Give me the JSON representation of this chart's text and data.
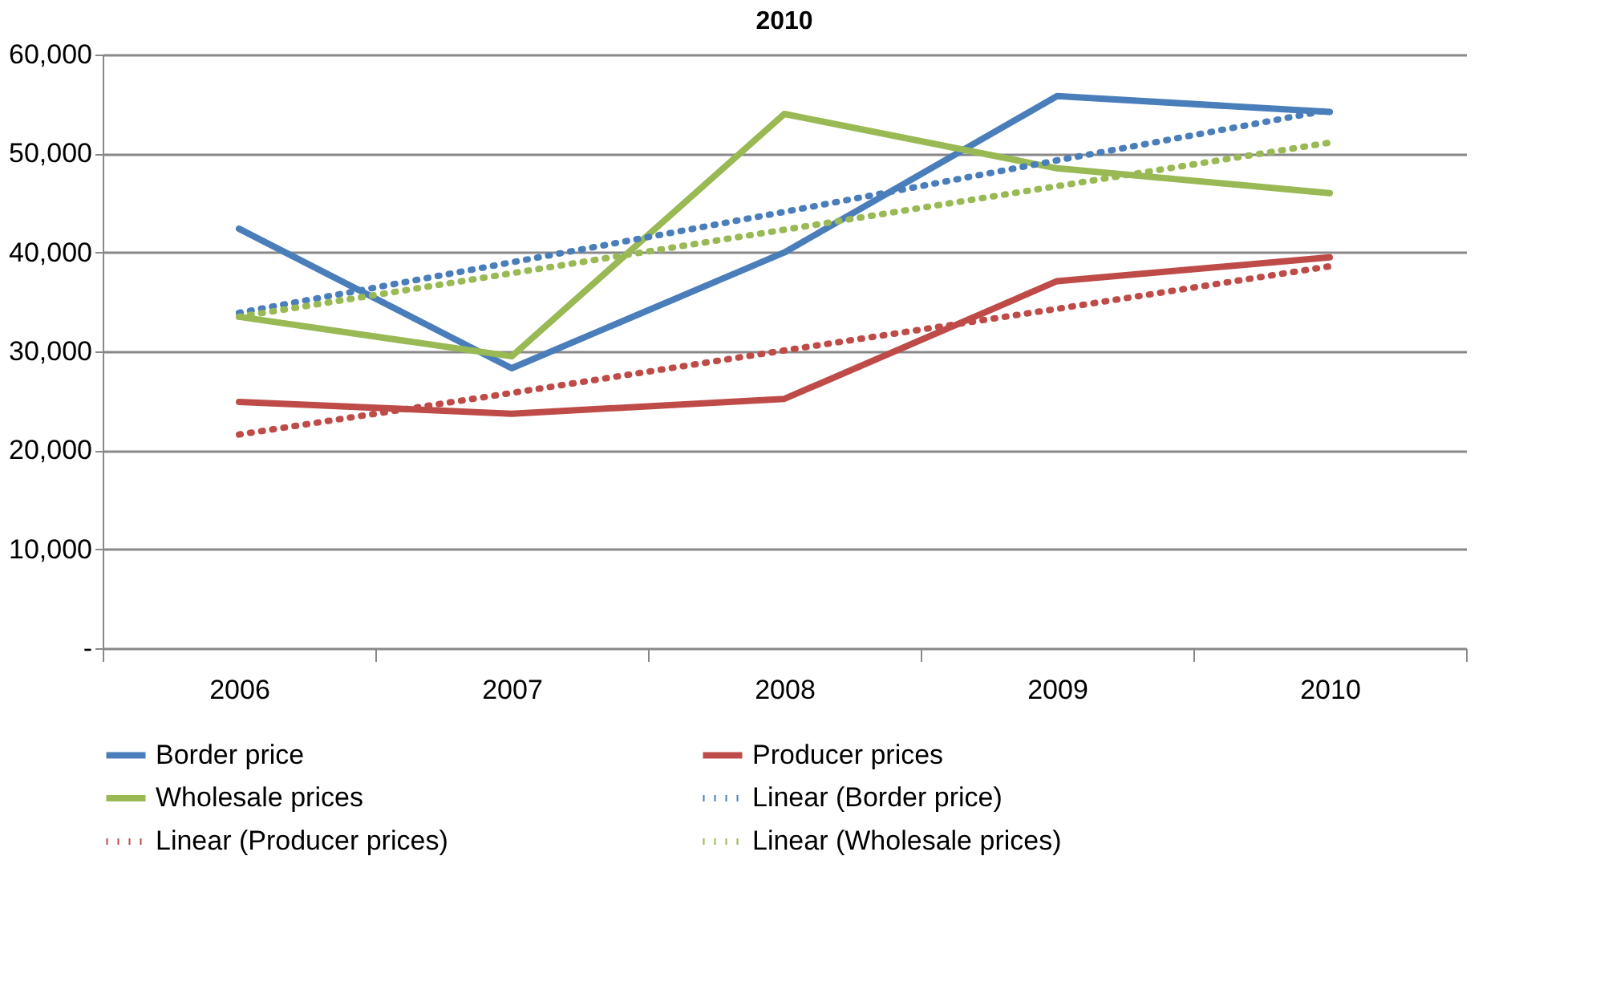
{
  "chart_data": {
    "type": "line",
    "title": "2010",
    "categories": [
      "2006",
      "2007",
      "2008",
      "2009",
      "2010"
    ],
    "series": [
      {
        "name": "Border price",
        "color": "#4a7ebb",
        "line_style": "solid",
        "values": [
          42400,
          28300,
          40000,
          55800,
          54200
        ]
      },
      {
        "name": "Producer prices",
        "color": "#be4b48",
        "line_style": "solid",
        "values": [
          24900,
          23700,
          25200,
          37100,
          39500
        ]
      },
      {
        "name": "Wholesale prices",
        "color": "#98b954",
        "line_style": "solid",
        "values": [
          33500,
          29500,
          54000,
          48500,
          46000
        ]
      },
      {
        "name": "Linear (Border price)",
        "color": "#4a7ebb",
        "line_style": "dotted",
        "values": [
          33900,
          39000,
          44100,
          49300,
          54400
        ]
      },
      {
        "name": "Linear (Producer prices)",
        "color": "#be4b48",
        "line_style": "dotted",
        "values": [
          21600,
          25800,
          30100,
          34300,
          38600
        ]
      },
      {
        "name": "Linear (Wholesale prices)",
        "color": "#98b954",
        "line_style": "dotted",
        "values": [
          33500,
          37900,
          42300,
          46700,
          51100
        ]
      }
    ],
    "ylim": [
      0,
      60000
    ],
    "yticks": [
      {
        "value": 0,
        "label": "-"
      },
      {
        "value": 10000,
        "label": "10,000"
      },
      {
        "value": 20000,
        "label": "20,000"
      },
      {
        "value": 30000,
        "label": "30,000"
      },
      {
        "value": 40000,
        "label": "40,000"
      },
      {
        "value": 50000,
        "label": "50,000"
      },
      {
        "value": 60000,
        "label": "60,000"
      }
    ],
    "grid": "y",
    "legend": "bottom",
    "marker": "none"
  }
}
